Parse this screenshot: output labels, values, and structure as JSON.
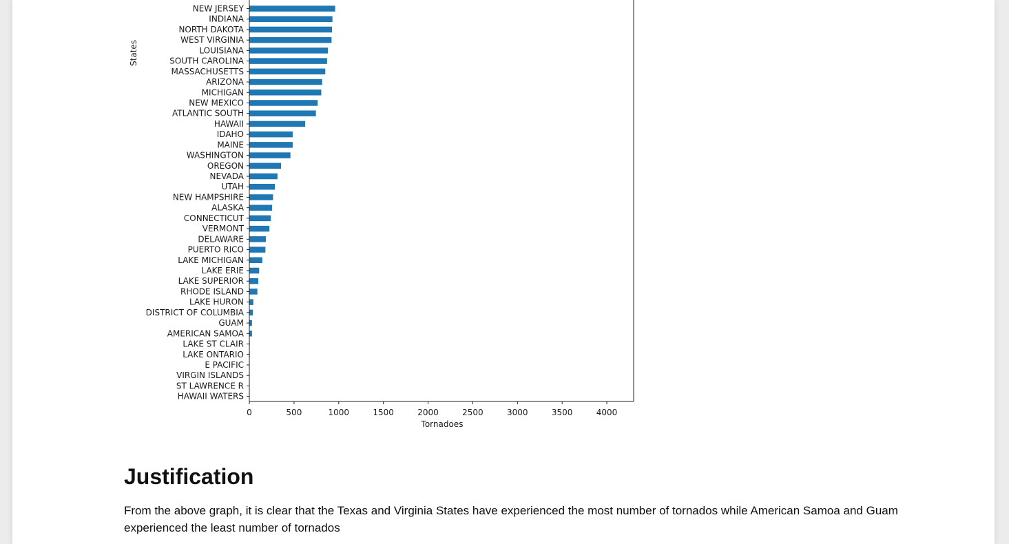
{
  "chart_data": {
    "type": "bar",
    "orientation": "horizontal",
    "xlabel": "Tornadoes",
    "ylabel": "States",
    "xlim": [
      0,
      4300
    ],
    "xticks": [
      0,
      500,
      1000,
      1500,
      2000,
      2500,
      3000,
      3500,
      4000
    ],
    "bar_color": "#1f77b4",
    "categories": [
      "NEW JERSEY",
      "INDIANA",
      "NORTH DAKOTA",
      "WEST VIRGINIA",
      "LOUISIANA",
      "SOUTH CAROLINA",
      "MASSACHUSETTS",
      "ARIZONA",
      "MICHIGAN",
      "NEW MEXICO",
      "ATLANTIC SOUTH",
      "HAWAII",
      "IDAHO",
      "MAINE",
      "WASHINGTON",
      "OREGON",
      "NEVADA",
      "UTAH",
      "NEW HAMPSHIRE",
      "ALASKA",
      "CONNECTICUT",
      "VERMONT",
      "DELAWARE",
      "PUERTO RICO",
      "LAKE MICHIGAN",
      "LAKE ERIE",
      "LAKE SUPERIOR",
      "RHODE ISLAND",
      "LAKE HURON",
      "DISTRICT OF COLUMBIA",
      "GUAM",
      "AMERICAN SAMOA",
      "LAKE ST CLAIR",
      "LAKE ONTARIO",
      "E PACIFIC",
      "VIRGIN ISLANDS",
      "ST LAWRENCE R",
      "HAWAII WATERS"
    ],
    "values": [
      960,
      930,
      925,
      920,
      880,
      870,
      850,
      815,
      805,
      765,
      745,
      625,
      485,
      485,
      460,
      355,
      315,
      285,
      265,
      255,
      240,
      225,
      185,
      180,
      145,
      110,
      100,
      90,
      45,
      40,
      30,
      30,
      5,
      5,
      3,
      3,
      2,
      2
    ]
  },
  "article": {
    "heading": "Justification",
    "body": "From the above graph, it is clear that the Texas and Virginia States have experienced the most number of tornados while American Samoa and Guam experienced the least number of tornados"
  }
}
